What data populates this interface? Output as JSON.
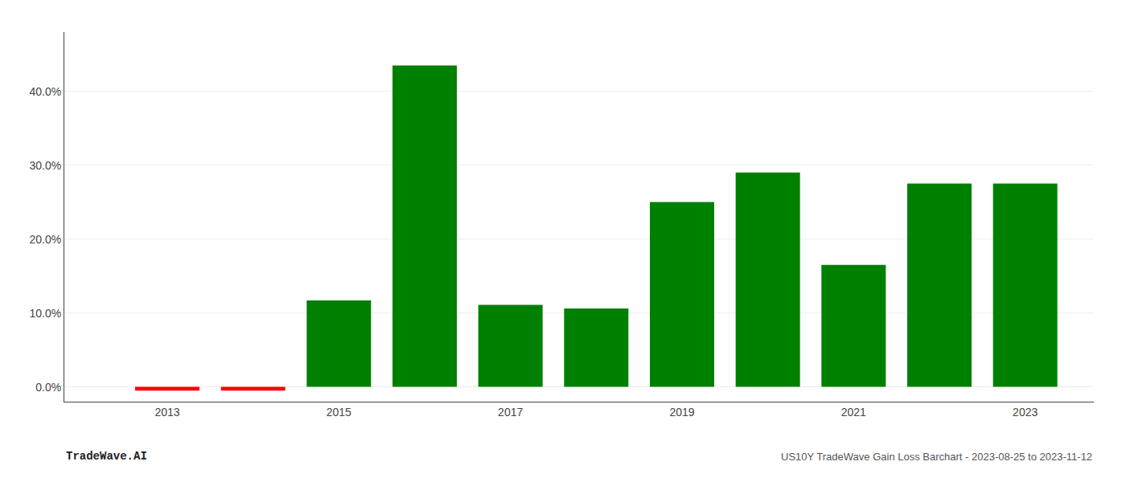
{
  "chart_data": {
    "type": "bar",
    "x": [
      2013,
      2014,
      2015,
      2016,
      2017,
      2018,
      2019,
      2020,
      2021,
      2022,
      2023
    ],
    "values": [
      -0.5,
      -0.5,
      11.7,
      43.5,
      11.1,
      10.6,
      25.0,
      29.0,
      16.5,
      27.5,
      27.5
    ],
    "colors": [
      "#ff0000",
      "#ff0000",
      "#008000",
      "#008000",
      "#008000",
      "#008000",
      "#008000",
      "#008000",
      "#008000",
      "#008000",
      "#008000"
    ],
    "xlim": [
      2011.8,
      2023.8
    ],
    "xticks": [
      2013,
      2015,
      2017,
      2019,
      2021,
      2023
    ],
    "ylim": [
      -2,
      48
    ],
    "yticks": [
      {
        "value": 0.0,
        "label": "0.0%"
      },
      {
        "value": 10.0,
        "label": "10.0%"
      },
      {
        "value": 20.0,
        "label": "20.0%"
      },
      {
        "value": 30.0,
        "label": "30.0%"
      },
      {
        "value": 40.0,
        "label": "40.0%"
      }
    ],
    "grid": true,
    "annotations": [
      "TradeWave.AI",
      "US10Y TradeWave Gain Loss Barchart - 2023-08-25 to 2023-11-12"
    ]
  }
}
